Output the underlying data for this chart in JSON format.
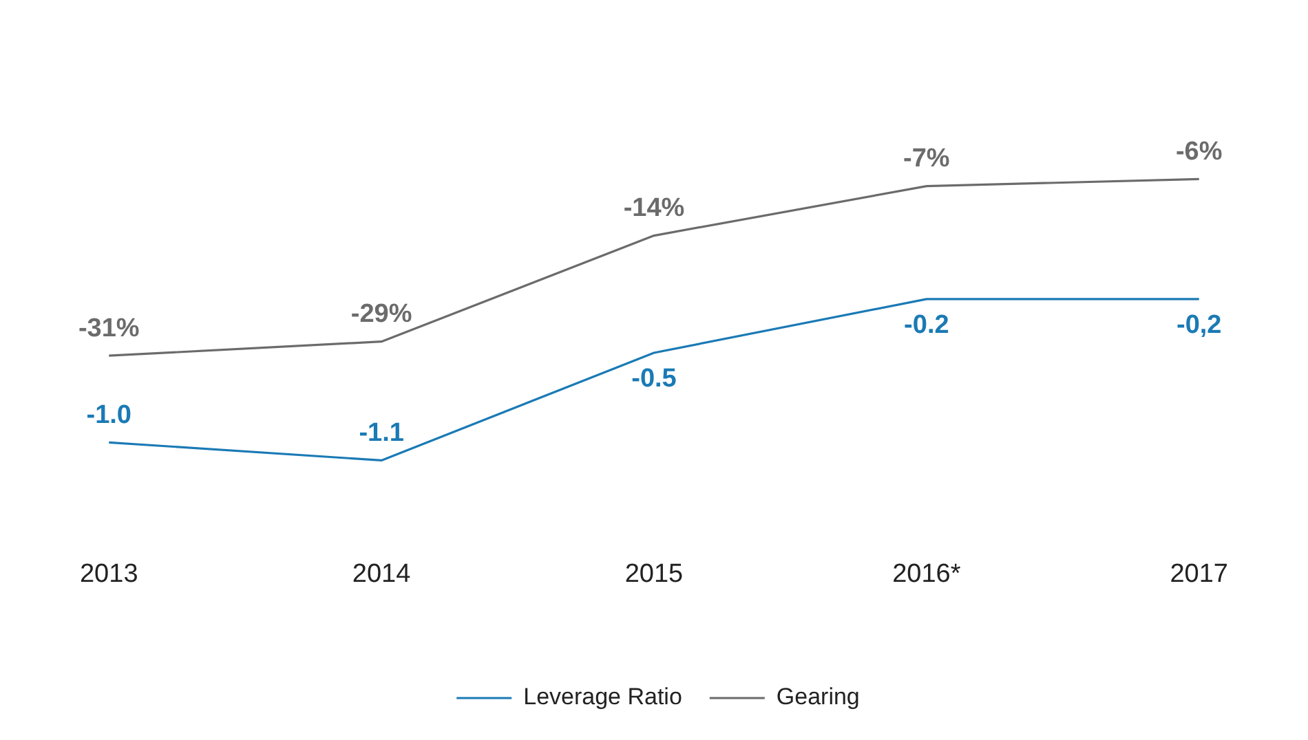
{
  "chart_data": {
    "type": "line",
    "categories": [
      "2013",
      "2014",
      "2015",
      "2016*",
      "2017"
    ],
    "series": [
      {
        "name": "Leverage Ratio",
        "color": "#1a7ab5",
        "values": [
          -1.0,
          -1.1,
          -0.5,
          -0.2,
          -0.2
        ],
        "value_labels": [
          "-1.0",
          "-1.1",
          "-0.5",
          "-0.2",
          "-0,2"
        ]
      },
      {
        "name": "Gearing",
        "color": "#6b6b6b",
        "axis": "y2",
        "values": [
          -31,
          -29,
          -14,
          -7,
          -6
        ],
        "value_labels": [
          "-31%",
          "-29%",
          "-14%",
          "-7%",
          "-6%"
        ]
      }
    ],
    "tick_labels": "x",
    "grid": false,
    "legend": "bottom",
    "marker": "none",
    "line_style": "solid"
  }
}
